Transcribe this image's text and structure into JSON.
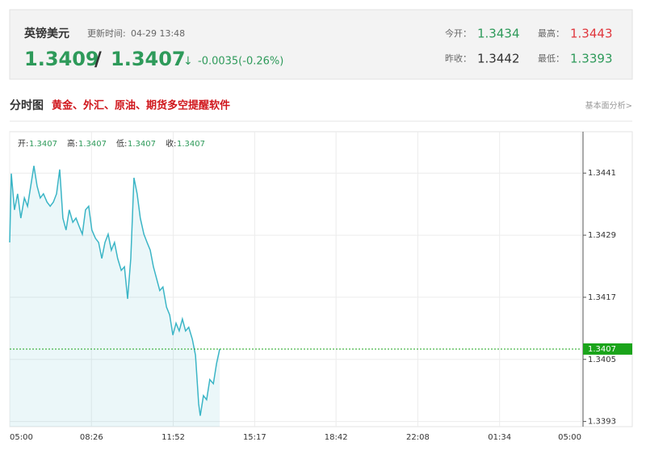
{
  "header": {
    "name": "英镑美元",
    "update_label": "更新时间:",
    "update_time": "04-29 13:48",
    "bid": "1.3409",
    "separator": "/",
    "ask": "1.3407",
    "arrow": "↓",
    "change": "-0.0035(-0.26%)",
    "open_label": "今开：",
    "open": "1.3434",
    "high_label": "最高：",
    "high": "1.3443",
    "prev_close_label": "昨收：",
    "prev_close": "1.3442",
    "low_label": "最低：",
    "low": "1.3393"
  },
  "section": {
    "title": "分时图",
    "promo": "黄金、外汇、原油、期货多空提醒软件",
    "link": "基本面分析>"
  },
  "chart_data": {
    "type": "line",
    "color": "#3bb5c6",
    "area": true,
    "info": [
      {
        "label": "开:",
        "value": "1.3407"
      },
      {
        "label": "高:",
        "value": "1.3407"
      },
      {
        "label": "低:",
        "value": "1.3407"
      },
      {
        "label": "收:",
        "value": "1.3407"
      }
    ],
    "x": [
      0,
      4,
      12,
      20,
      28,
      37,
      45,
      53,
      61,
      69,
      77,
      85,
      94,
      102,
      110,
      118,
      126,
      134,
      142,
      150,
      159,
      167,
      175,
      183,
      191,
      199,
      207,
      216,
      224,
      232,
      240,
      248,
      256,
      264,
      272,
      281,
      289,
      297,
      305,
      313,
      321,
      329,
      338,
      346,
      354,
      362,
      370,
      378,
      386,
      395,
      403,
      411,
      419,
      427,
      435,
      443,
      451,
      460,
      468,
      476,
      480,
      488,
      496,
      504,
      513,
      521,
      529
    ],
    "values": [
      1.34276,
      1.34409,
      1.34339,
      1.3437,
      1.34323,
      1.34362,
      1.34346,
      1.34385,
      1.34424,
      1.34385,
      1.34362,
      1.3437,
      1.34354,
      1.34346,
      1.34354,
      1.3437,
      1.34417,
      1.34323,
      1.343,
      1.34339,
      1.34315,
      1.34323,
      1.34307,
      1.34292,
      1.34339,
      1.34346,
      1.343,
      1.34284,
      1.34276,
      1.34245,
      1.34276,
      1.34292,
      1.34261,
      1.34276,
      1.34245,
      1.34222,
      1.34229,
      1.34167,
      1.34245,
      1.34401,
      1.3437,
      1.34323,
      1.34292,
      1.34276,
      1.34261,
      1.34229,
      1.34206,
      1.34183,
      1.3419,
      1.34151,
      1.34136,
      1.34097,
      1.3412,
      1.34105,
      1.34128,
      1.34105,
      1.34112,
      1.34089,
      1.34058,
      1.33964,
      1.33941,
      1.3398,
      1.33972,
      1.34011,
      1.34003,
      1.34042,
      1.3407
    ],
    "xlim": [
      0,
      1440
    ],
    "xticks": [
      {
        "value": 0,
        "label": "05:00"
      },
      {
        "value": 206,
        "label": "08:26"
      },
      {
        "value": 412,
        "label": "11:52"
      },
      {
        "value": 617,
        "label": "15:17"
      },
      {
        "value": 822,
        "label": "18:42"
      },
      {
        "value": 1028,
        "label": "22:08"
      },
      {
        "value": 1234,
        "label": "01:34"
      },
      {
        "value": 1440,
        "label": "05:00"
      }
    ],
    "ylim": [
      1.3392,
      1.3449
    ],
    "yticks": [
      1.3441,
      1.3429,
      1.3417,
      1.3405,
      1.3393
    ],
    "current": 1.3407,
    "grid": true
  }
}
